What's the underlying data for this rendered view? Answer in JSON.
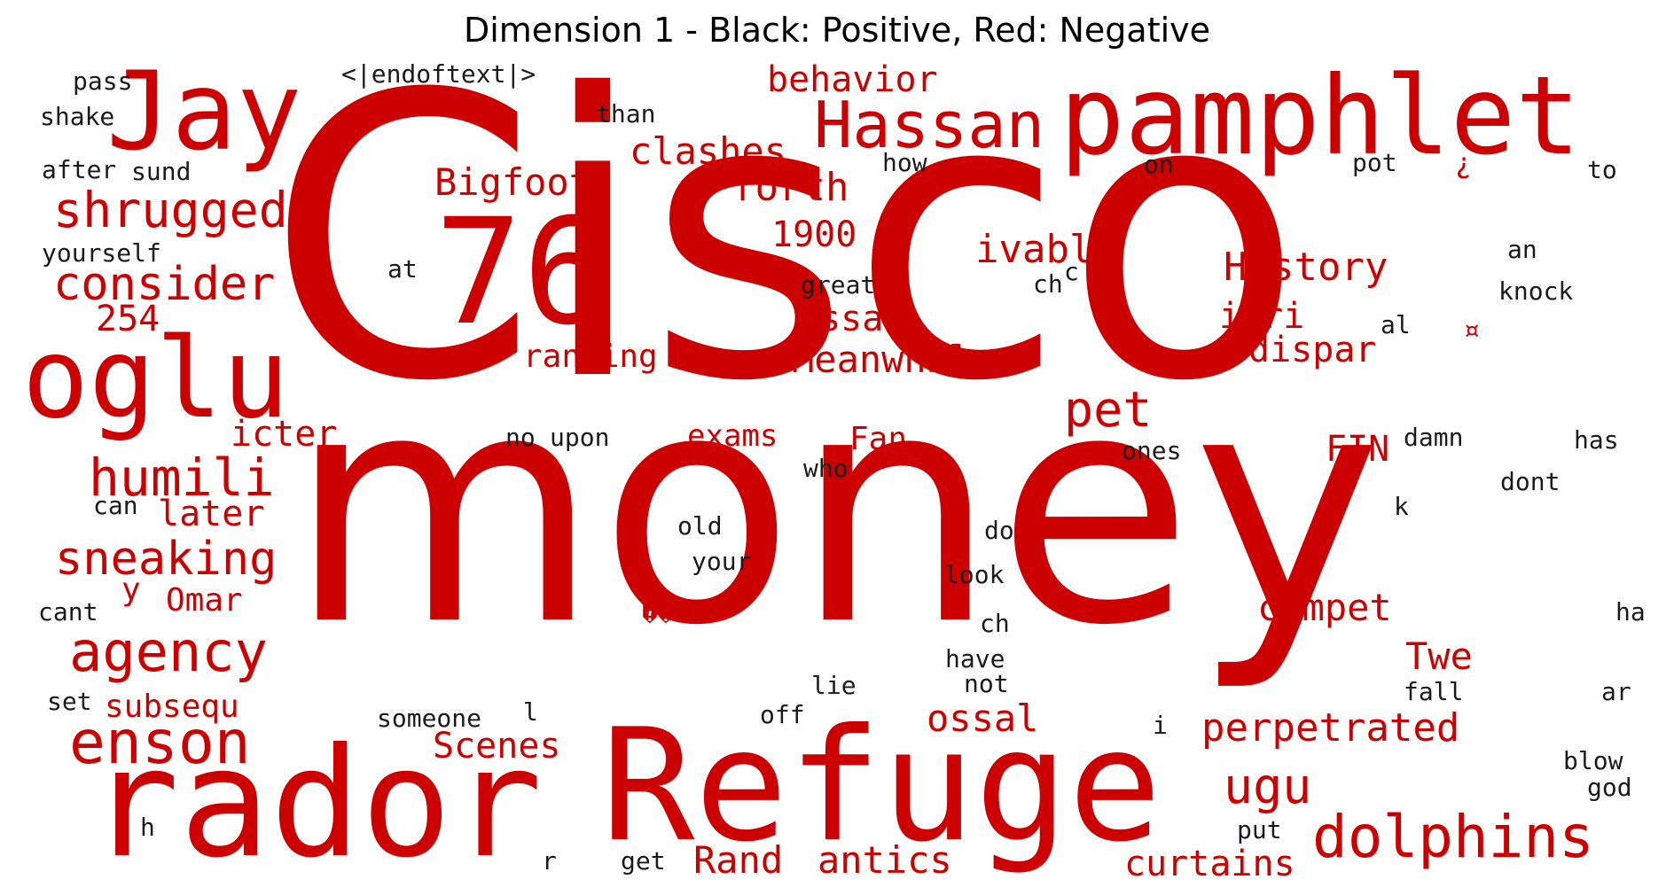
{
  "title": "Dimension 1 - Black: Positive, Red: Negative",
  "colors": {
    "positive": "#1a1a1a",
    "negative": "#cc0000"
  },
  "words": [
    {
      "text": "Cisco",
      "sign": "negative"
    },
    {
      "text": "money",
      "sign": "negative"
    },
    {
      "text": "Refuge",
      "sign": "negative"
    },
    {
      "text": "rador",
      "sign": "negative"
    },
    {
      "text": "76",
      "sign": "negative"
    },
    {
      "text": "pamphlet",
      "sign": "negative"
    },
    {
      "text": "Jay",
      "sign": "negative"
    },
    {
      "text": "oglu",
      "sign": "negative"
    },
    {
      "text": "Hassan",
      "sign": "negative"
    },
    {
      "text": "dolphins",
      "sign": "negative"
    },
    {
      "text": "enson",
      "sign": "negative"
    },
    {
      "text": "agency",
      "sign": "negative"
    },
    {
      "text": "shrugged",
      "sign": "negative"
    },
    {
      "text": "consider",
      "sign": "negative"
    },
    {
      "text": "sneaking",
      "sign": "negative"
    },
    {
      "text": "humili",
      "sign": "negative"
    },
    {
      "text": "pet",
      "sign": "negative"
    },
    {
      "text": "ugu",
      "sign": "negative"
    },
    {
      "text": "perpetrated",
      "sign": "negative"
    },
    {
      "text": "History",
      "sign": "negative"
    },
    {
      "text": "Meanwhile",
      "sign": "negative"
    },
    {
      "text": "clashes",
      "sign": "negative"
    },
    {
      "text": "Bigfoot",
      "sign": "negative"
    },
    {
      "text": "forth",
      "sign": "negative"
    },
    {
      "text": "behavior",
      "sign": "negative"
    },
    {
      "text": "ivably",
      "sign": "negative"
    },
    {
      "text": "1900",
      "sign": "negative"
    },
    {
      "text": "assad",
      "sign": "negative"
    },
    {
      "text": "ieri",
      "sign": "negative"
    },
    {
      "text": "dispar",
      "sign": "negative"
    },
    {
      "text": "ranking",
      "sign": "negative"
    },
    {
      "text": "254",
      "sign": "negative"
    },
    {
      "text": "icter",
      "sign": "negative"
    },
    {
      "text": "later",
      "sign": "negative"
    },
    {
      "text": "y",
      "sign": "negative"
    },
    {
      "text": "Omar",
      "sign": "negative"
    },
    {
      "text": "subsequ",
      "sign": "negative"
    },
    {
      "text": "Scenes",
      "sign": "negative"
    },
    {
      "text": "ossal",
      "sign": "negative"
    },
    {
      "text": "compet",
      "sign": "negative"
    },
    {
      "text": "Twe",
      "sign": "negative"
    },
    {
      "text": "FIN",
      "sign": "negative"
    },
    {
      "text": "Fan",
      "sign": "negative"
    },
    {
      "text": "exams",
      "sign": "negative"
    },
    {
      "text": "Rand",
      "sign": "negative"
    },
    {
      "text": "antics",
      "sign": "negative"
    },
    {
      "text": "curtains",
      "sign": "negative"
    },
    {
      "text": "¿",
      "sign": "negative"
    },
    {
      "text": "¤",
      "sign": "negative"
    },
    {
      "text": "��",
      "sign": "negative"
    },
    {
      "text": "pass",
      "sign": "positive"
    },
    {
      "text": "shake",
      "sign": "positive"
    },
    {
      "text": "after",
      "sign": "positive"
    },
    {
      "text": "sund",
      "sign": "positive"
    },
    {
      "text": "yourself",
      "sign": "positive"
    },
    {
      "text": "<|endoftext|>",
      "sign": "positive"
    },
    {
      "text": "than",
      "sign": "positive"
    },
    {
      "text": "how",
      "sign": "positive"
    },
    {
      "text": "on",
      "sign": "positive"
    },
    {
      "text": "pot",
      "sign": "positive"
    },
    {
      "text": "to",
      "sign": "positive"
    },
    {
      "text": "an",
      "sign": "positive"
    },
    {
      "text": "knock",
      "sign": "positive"
    },
    {
      "text": "al",
      "sign": "positive"
    },
    {
      "text": "at",
      "sign": "positive"
    },
    {
      "text": "great",
      "sign": "positive"
    },
    {
      "text": "ch",
      "sign": "positive"
    },
    {
      "text": "c",
      "sign": "positive"
    },
    {
      "text": "no",
      "sign": "positive"
    },
    {
      "text": "upon",
      "sign": "positive"
    },
    {
      "text": "who",
      "sign": "positive"
    },
    {
      "text": "ones",
      "sign": "positive"
    },
    {
      "text": "damn",
      "sign": "positive"
    },
    {
      "text": "has",
      "sign": "positive"
    },
    {
      "text": "dont",
      "sign": "positive"
    },
    {
      "text": "can",
      "sign": "positive"
    },
    {
      "text": "k",
      "sign": "positive"
    },
    {
      "text": "old",
      "sign": "positive"
    },
    {
      "text": "do",
      "sign": "positive"
    },
    {
      "text": "your",
      "sign": "positive"
    },
    {
      "text": "look",
      "sign": "positive"
    },
    {
      "text": "cant",
      "sign": "positive"
    },
    {
      "text": "ch",
      "sign": "positive"
    },
    {
      "text": "ha",
      "sign": "positive"
    },
    {
      "text": "have",
      "sign": "positive"
    },
    {
      "text": "not",
      "sign": "positive"
    },
    {
      "text": "lie",
      "sign": "positive"
    },
    {
      "text": "set",
      "sign": "positive"
    },
    {
      "text": "fall",
      "sign": "positive"
    },
    {
      "text": "ar",
      "sign": "positive"
    },
    {
      "text": "someone",
      "sign": "positive"
    },
    {
      "text": "l",
      "sign": "positive"
    },
    {
      "text": "off",
      "sign": "positive"
    },
    {
      "text": "i",
      "sign": "positive"
    },
    {
      "text": "blow",
      "sign": "positive"
    },
    {
      "text": "god",
      "sign": "positive"
    },
    {
      "text": "h",
      "sign": "positive"
    },
    {
      "text": "put",
      "sign": "positive"
    },
    {
      "text": "r",
      "sign": "positive"
    },
    {
      "text": "get",
      "sign": "positive"
    }
  ]
}
